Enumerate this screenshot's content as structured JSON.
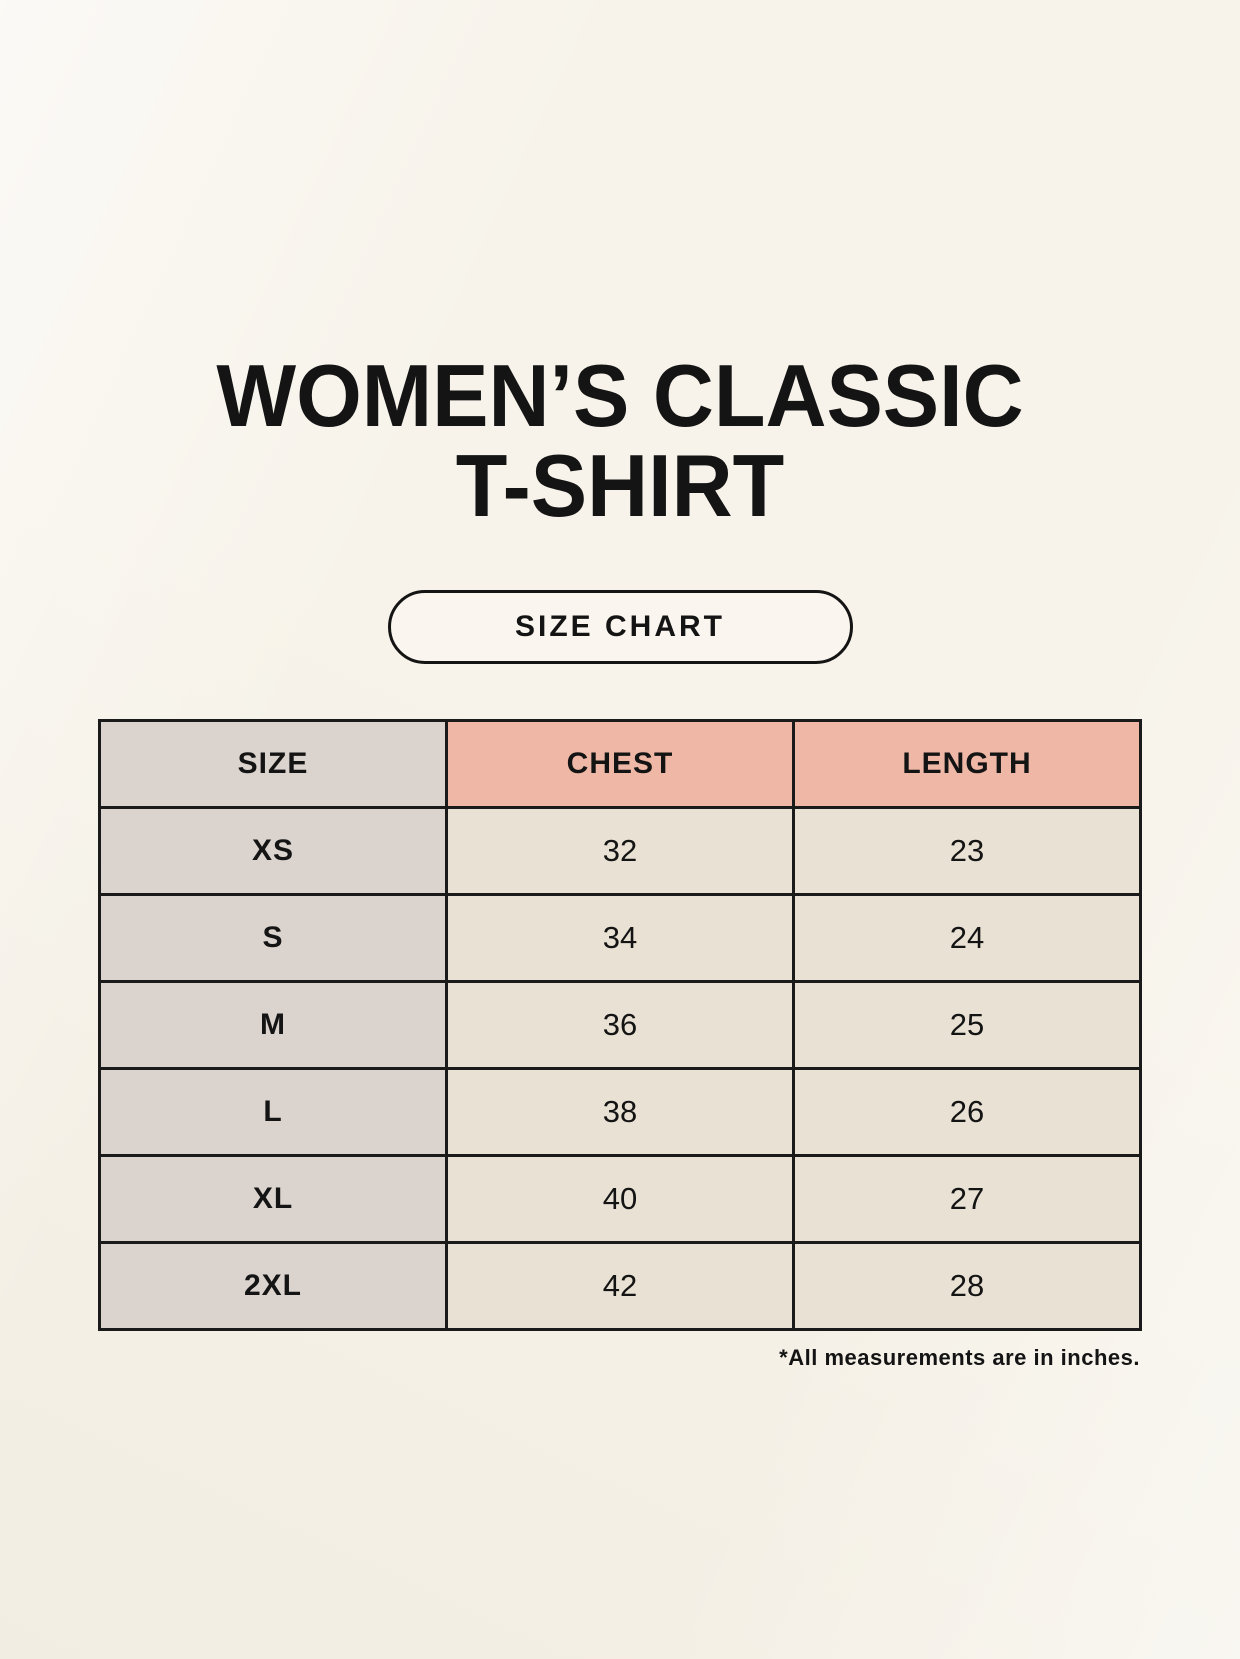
{
  "header": {
    "title_line1": "WOMEN’S CLASSIC",
    "title_line2": "T-SHIRT"
  },
  "button": {
    "label": "SIZE CHART"
  },
  "chart_data": {
    "type": "table",
    "title": "WOMEN’S CLASSIC T-SHIRT",
    "columns": [
      "SIZE",
      "CHEST",
      "LENGTH"
    ],
    "rows": [
      [
        "XS",
        "32",
        "23"
      ],
      [
        "S",
        "34",
        "24"
      ],
      [
        "M",
        "36",
        "25"
      ],
      [
        "L",
        "38",
        "26"
      ],
      [
        "XL",
        "40",
        "27"
      ],
      [
        "2XL",
        "42",
        "28"
      ]
    ],
    "note": "*All measurements are in inches."
  },
  "colors": {
    "background": "#f7f3ea",
    "size_column": "#dad3ce",
    "accent_pink": "#efb7a5",
    "data_cell": "#e9e2d4",
    "border": "#1a1a1a",
    "text": "#141414"
  }
}
